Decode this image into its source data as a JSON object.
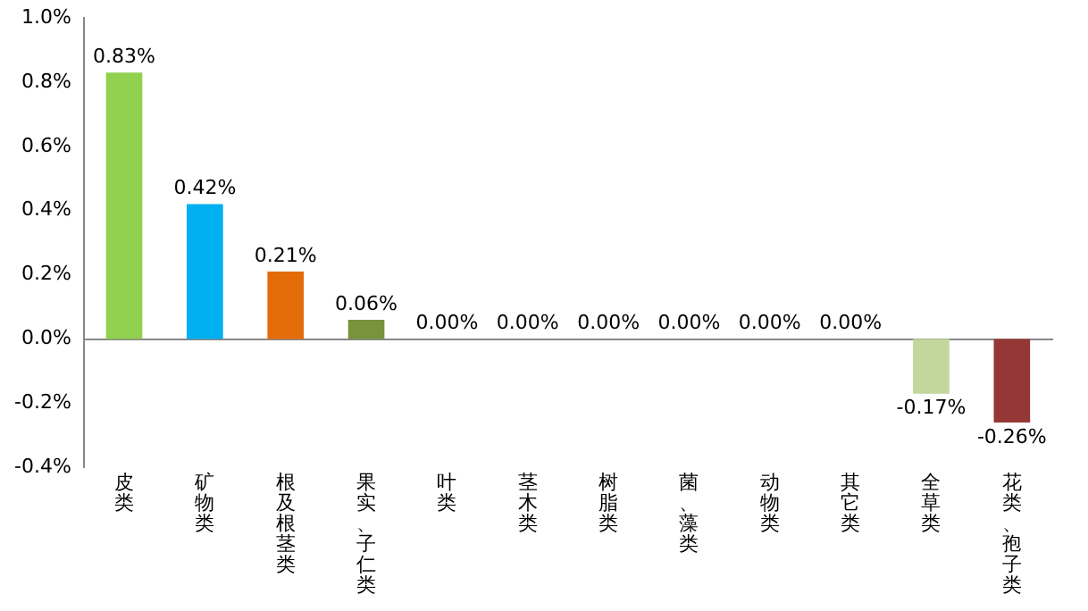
{
  "chart_data": {
    "type": "bar",
    "categories": [
      "皮类",
      "矿物类",
      "根及根茎类",
      "果实、子仁类",
      "叶类",
      "茎木类",
      "树脂类",
      "菌、藻类",
      "动物类",
      "其它类",
      "全草类",
      "花类、孢子类"
    ],
    "values": [
      0.83,
      0.42,
      0.21,
      0.06,
      0,
      0,
      0,
      0,
      0,
      0,
      -0.17,
      -0.26
    ],
    "colors": [
      "#92d050",
      "#00b0f0",
      "#e36c09",
      "#77933c",
      "#c0504d",
      "#c0504d",
      "#c0504d",
      "#c0504d",
      "#c0504d",
      "#c0504d",
      "#c3d69b",
      "#953735"
    ],
    "value_labels": [
      "0.83%",
      "0.42%",
      "0.21%",
      "0.06%",
      "0.00%",
      "0.00%",
      "0.00%",
      "0.00%",
      "0.00%",
      "0.00%",
      "-0.17%",
      "-0.26%"
    ],
    "ylim": [
      -0.4,
      1.0
    ],
    "yticks": [
      {
        "value": -0.4,
        "label": "-0.4%"
      },
      {
        "value": -0.2,
        "label": "-0.2%"
      },
      {
        "value": 0,
        "label": "0.0%"
      },
      {
        "value": 0.2,
        "label": "0.2%"
      },
      {
        "value": 0.4,
        "label": "0.4%"
      },
      {
        "value": 0.6,
        "label": "0.6%"
      },
      {
        "value": 0.8,
        "label": "0.8%"
      },
      {
        "value": 1.0,
        "label": "1.0%"
      }
    ],
    "legend": false
  }
}
